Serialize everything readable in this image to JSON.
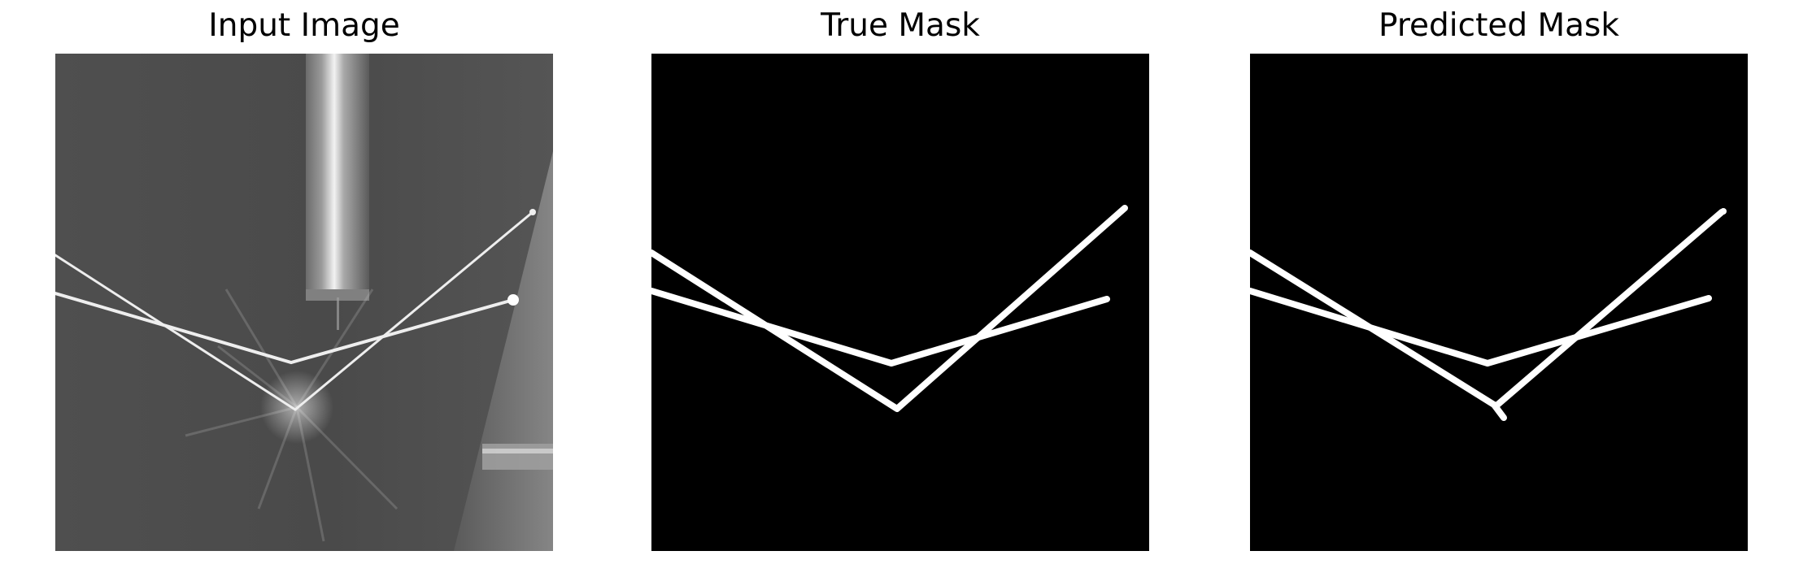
{
  "figure": {
    "panels": [
      {
        "id": "input",
        "title": "Input Image"
      },
      {
        "id": "true_mask",
        "title": "True Mask"
      },
      {
        "id": "predicted_mask",
        "title": "Predicted Mask"
      }
    ]
  },
  "colors": {
    "background": "#ffffff",
    "mask_background": "#000000",
    "mask_foreground": "#ffffff",
    "input_gray": "#4a4a4a"
  }
}
